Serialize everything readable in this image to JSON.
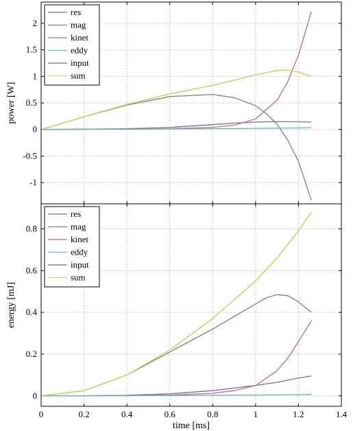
{
  "chart_data": [
    {
      "type": "line",
      "panel": "top",
      "ylabel": "power [W]",
      "xlabel": "",
      "xlim": [
        0,
        1.4
      ],
      "ylim": [
        -1.4,
        2.4
      ],
      "xticks": [
        0,
        0.2,
        0.4,
        0.6,
        0.8,
        1,
        1.2,
        1.4
      ],
      "yticks": [
        -1,
        -0.5,
        0,
        0.5,
        1,
        1.5,
        2
      ],
      "ytick_labels": [
        "-1",
        "-0.5",
        "0",
        "0.5",
        "1",
        "1.5",
        "2"
      ],
      "grid": true,
      "legend": "top-left",
      "series": [
        {
          "name": "res",
          "color": "#7b6f8f",
          "x": [
            0,
            0.2,
            0.4,
            0.6,
            0.8,
            0.9,
            1.0,
            1.1,
            1.2,
            1.26
          ],
          "y": [
            0,
            0.005,
            0.015,
            0.04,
            0.09,
            0.12,
            0.14,
            0.15,
            0.145,
            0.14
          ]
        },
        {
          "name": "mag",
          "color": "#6f8a6f",
          "x": [
            0,
            0.2,
            0.4,
            0.6,
            0.8,
            0.9,
            1.0,
            1.05,
            1.1,
            1.15,
            1.2,
            1.26
          ],
          "y": [
            0,
            0.24,
            0.46,
            0.62,
            0.66,
            0.6,
            0.45,
            0.3,
            0.1,
            -0.2,
            -0.6,
            -1.33
          ]
        },
        {
          "name": "kinet",
          "color": "#c06a7a",
          "x": [
            0,
            0.2,
            0.4,
            0.6,
            0.8,
            0.9,
            1.0,
            1.1,
            1.15,
            1.2,
            1.26
          ],
          "y": [
            0,
            0.002,
            0.006,
            0.015,
            0.04,
            0.08,
            0.2,
            0.55,
            0.9,
            1.4,
            2.22
          ]
        },
        {
          "name": "eddy",
          "color": "#5fb7c8",
          "x": [
            0,
            0.2,
            0.4,
            0.6,
            0.8,
            1.0,
            1.2,
            1.26
          ],
          "y": [
            0,
            0.002,
            0.005,
            0.01,
            0.015,
            0.02,
            0.03,
            0.035
          ]
        },
        {
          "name": "input",
          "color": "#7a6e6a",
          "x": [
            0,
            0.2,
            0.4,
            0.6,
            0.8,
            0.9,
            1.0,
            1.1,
            1.15,
            1.2,
            1.26
          ],
          "y": [
            0,
            0.24,
            0.47,
            0.67,
            0.83,
            0.93,
            1.03,
            1.11,
            1.12,
            1.08,
            1.0
          ]
        },
        {
          "name": "sum",
          "color": "#d8d85a",
          "x": [
            0,
            0.2,
            0.4,
            0.6,
            0.8,
            0.9,
            1.0,
            1.1,
            1.15,
            1.2,
            1.26
          ],
          "y": [
            0,
            0.24,
            0.47,
            0.67,
            0.83,
            0.93,
            1.03,
            1.11,
            1.12,
            1.08,
            1.0
          ]
        }
      ]
    },
    {
      "type": "line",
      "panel": "bottom",
      "ylabel": "energy [mJ]",
      "xlabel": "time [ms]",
      "xlim": [
        0,
        1.4
      ],
      "ylim": [
        -0.05,
        0.92
      ],
      "xticks": [
        0,
        0.2,
        0.4,
        0.6,
        0.8,
        1,
        1.2,
        1.4
      ],
      "xtick_labels": [
        "0",
        "0.2",
        "0.4",
        "0.6",
        "0.8",
        "1",
        "1.2",
        "1.4"
      ],
      "yticks": [
        0,
        0.2,
        0.4,
        0.6,
        0.8
      ],
      "ytick_labels": [
        "0",
        "0.2",
        "0.4",
        "0.6",
        "0.8"
      ],
      "grid": true,
      "legend": "top-left",
      "series": [
        {
          "name": "res",
          "color": "#7b6f8f",
          "x": [
            0,
            0.2,
            0.4,
            0.6,
            0.8,
            1.0,
            1.1,
            1.2,
            1.26
          ],
          "y": [
            0,
            0.0005,
            0.003,
            0.01,
            0.025,
            0.05,
            0.065,
            0.085,
            0.095
          ]
        },
        {
          "name": "mag",
          "color": "#6f8a6f",
          "x": [
            0,
            0.2,
            0.4,
            0.6,
            0.8,
            0.9,
            1.0,
            1.05,
            1.1,
            1.15,
            1.2,
            1.26
          ],
          "y": [
            0,
            0.025,
            0.1,
            0.21,
            0.32,
            0.38,
            0.44,
            0.47,
            0.485,
            0.48,
            0.45,
            0.4
          ]
        },
        {
          "name": "kinet",
          "color": "#c06a7a",
          "x": [
            0,
            0.2,
            0.4,
            0.6,
            0.8,
            0.9,
            1.0,
            1.1,
            1.15,
            1.2,
            1.26
          ],
          "y": [
            0,
            0.0003,
            0.001,
            0.004,
            0.012,
            0.025,
            0.05,
            0.12,
            0.18,
            0.26,
            0.36
          ]
        },
        {
          "name": "eddy",
          "color": "#5fb7c8",
          "x": [
            0,
            0.2,
            0.4,
            0.6,
            0.8,
            1.0,
            1.2,
            1.26
          ],
          "y": [
            0,
            0.0005,
            0.001,
            0.002,
            0.003,
            0.004,
            0.006,
            0.007
          ]
        },
        {
          "name": "input",
          "color": "#7a6e6a",
          "x": [
            0,
            0.2,
            0.4,
            0.6,
            0.8,
            0.9,
            1.0,
            1.1,
            1.2,
            1.26
          ],
          "y": [
            0,
            0.025,
            0.1,
            0.22,
            0.37,
            0.46,
            0.55,
            0.66,
            0.79,
            0.88
          ]
        },
        {
          "name": "sum",
          "color": "#d8d85a",
          "x": [
            0,
            0.2,
            0.4,
            0.6,
            0.8,
            0.9,
            1.0,
            1.1,
            1.2,
            1.26
          ],
          "y": [
            0,
            0.025,
            0.1,
            0.22,
            0.37,
            0.46,
            0.55,
            0.66,
            0.79,
            0.88
          ]
        }
      ]
    }
  ]
}
